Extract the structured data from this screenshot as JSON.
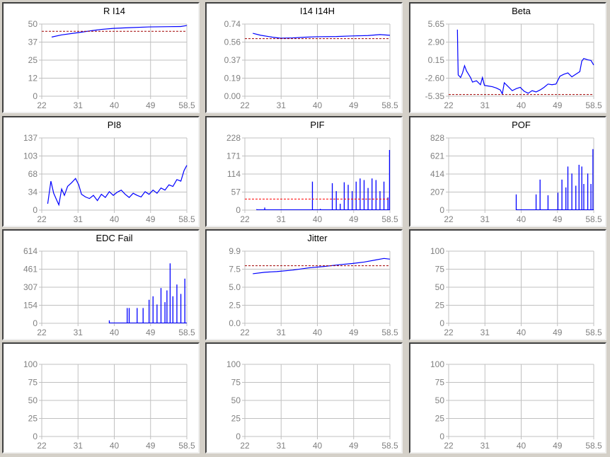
{
  "colors": {
    "line": "#0000ff",
    "threshold": "#a00000",
    "threshold_red": "#ff0000",
    "grid": "#c0c0c0",
    "tick": "#808080"
  },
  "chart_data": [
    {
      "type": "line",
      "title": "R I14",
      "xticks": [
        "22",
        "31",
        "40",
        "49",
        "58.5"
      ],
      "xlim": [
        22,
        58.5
      ],
      "yticks": [
        "0",
        "12",
        "25",
        "37",
        "50"
      ],
      "ylim": [
        0,
        50
      ],
      "threshold": 45,
      "series": [
        [
          24.5,
          41
        ],
        [
          27,
          42.5
        ],
        [
          31,
          44
        ],
        [
          33,
          44.8
        ],
        [
          35,
          45.6
        ],
        [
          37,
          46.3
        ],
        [
          40,
          47
        ],
        [
          44,
          47.5
        ],
        [
          49,
          48
        ],
        [
          54,
          48.2
        ],
        [
          57,
          48.3
        ],
        [
          58.5,
          49
        ]
      ]
    },
    {
      "type": "line",
      "title": "I14 I14H",
      "xticks": [
        "22",
        "31",
        "40",
        "49",
        "58.5"
      ],
      "xlim": [
        22,
        58.5
      ],
      "yticks": [
        "0.00",
        "0.19",
        "0.37",
        "0.56",
        "0.74"
      ],
      "ylim": [
        0,
        0.74
      ],
      "threshold": 0.59,
      "series": [
        [
          24,
          0.645
        ],
        [
          26,
          0.625
        ],
        [
          29,
          0.605
        ],
        [
          31,
          0.595
        ],
        [
          34,
          0.598
        ],
        [
          37,
          0.605
        ],
        [
          40,
          0.61
        ],
        [
          45,
          0.612
        ],
        [
          49,
          0.618
        ],
        [
          53,
          0.622
        ],
        [
          56,
          0.632
        ],
        [
          58.5,
          0.625
        ]
      ]
    },
    {
      "type": "line",
      "title": "Beta",
      "xticks": [
        "22",
        "31",
        "40",
        "49",
        "58.5"
      ],
      "xlim": [
        22,
        58.5
      ],
      "yticks": [
        "-5.35",
        "-2.60",
        "0.15",
        "2.90",
        "5.65"
      ],
      "ylim": [
        -5.35,
        5.65
      ],
      "threshold": -5.1,
      "series": [
        [
          24.2,
          4.8
        ],
        [
          24.3,
          0.9
        ],
        [
          24.4,
          -2.1
        ],
        [
          25,
          -2.5
        ],
        [
          25.5,
          -1.8
        ],
        [
          26,
          -0.7
        ],
        [
          26.5,
          -1.5
        ],
        [
          27,
          -2.0
        ],
        [
          27.5,
          -2.5
        ],
        [
          28,
          -3.2
        ],
        [
          29,
          -3.0
        ],
        [
          30,
          -3.6
        ],
        [
          30.5,
          -2.5
        ],
        [
          31,
          -3.7
        ],
        [
          32,
          -3.8
        ],
        [
          33,
          -3.9
        ],
        [
          34,
          -4.1
        ],
        [
          35,
          -4.4
        ],
        [
          35.5,
          -5.0
        ],
        [
          36,
          -3.3
        ],
        [
          37,
          -3.9
        ],
        [
          38,
          -4.5
        ],
        [
          39,
          -4.2
        ],
        [
          40,
          -4.0
        ],
        [
          41,
          -4.6
        ],
        [
          42,
          -4.9
        ],
        [
          43,
          -4.5
        ],
        [
          44,
          -4.7
        ],
        [
          45,
          -4.4
        ],
        [
          46,
          -4.0
        ],
        [
          47,
          -3.5
        ],
        [
          48,
          -3.6
        ],
        [
          49,
          -3.5
        ],
        [
          50,
          -2.3
        ],
        [
          51,
          -2.0
        ],
        [
          52,
          -1.8
        ],
        [
          53,
          -2.4
        ],
        [
          54,
          -2.0
        ],
        [
          55,
          -1.6
        ],
        [
          55.5,
          0.0
        ],
        [
          56,
          0.4
        ],
        [
          57,
          0.2
        ],
        [
          57.8,
          0.1
        ],
        [
          58.5,
          -0.6
        ]
      ]
    },
    {
      "type": "line",
      "title": "PI8",
      "xticks": [
        "22",
        "31",
        "40",
        "49",
        "58.5"
      ],
      "xlim": [
        22,
        58.5
      ],
      "yticks": [
        "0",
        "34",
        "68",
        "103",
        "137"
      ],
      "ylim": [
        0,
        137
      ],
      "series": [
        [
          23.5,
          12
        ],
        [
          24.3,
          55
        ],
        [
          25,
          32
        ],
        [
          25.7,
          20
        ],
        [
          26.3,
          10
        ],
        [
          27,
          40
        ],
        [
          27.7,
          28
        ],
        [
          28.5,
          45
        ],
        [
          29.5,
          52
        ],
        [
          30.5,
          60
        ],
        [
          31.3,
          48
        ],
        [
          32,
          30
        ],
        [
          33,
          25
        ],
        [
          34,
          22
        ],
        [
          35,
          28
        ],
        [
          36,
          18
        ],
        [
          37,
          30
        ],
        [
          38,
          24
        ],
        [
          39,
          35
        ],
        [
          40,
          28
        ],
        [
          41,
          34
        ],
        [
          42,
          38
        ],
        [
          43,
          30
        ],
        [
          44,
          24
        ],
        [
          45,
          32
        ],
        [
          46,
          28
        ],
        [
          47,
          25
        ],
        [
          48,
          35
        ],
        [
          49,
          30
        ],
        [
          50,
          38
        ],
        [
          51,
          32
        ],
        [
          52,
          42
        ],
        [
          53,
          38
        ],
        [
          54,
          48
        ],
        [
          55,
          45
        ],
        [
          56,
          58
        ],
        [
          57,
          55
        ],
        [
          57.8,
          75
        ],
        [
          58.5,
          85
        ]
      ]
    },
    {
      "type": "spike",
      "title": "PIF",
      "xticks": [
        "22",
        "31",
        "40",
        "49",
        "58.5"
      ],
      "xlim": [
        22,
        58.5
      ],
      "yticks": [
        "0",
        "57",
        "114",
        "171",
        "228"
      ],
      "ylim": [
        0,
        228
      ],
      "threshold": 35,
      "threshold_color": "red",
      "series": [
        [
          25,
          3
        ],
        [
          27,
          8
        ],
        [
          29,
          2
        ],
        [
          33,
          2
        ],
        [
          39,
          90
        ],
        [
          41,
          4
        ],
        [
          44,
          85
        ],
        [
          45,
          60
        ],
        [
          46,
          20
        ],
        [
          47,
          88
        ],
        [
          48,
          80
        ],
        [
          49,
          60
        ],
        [
          50,
          90
        ],
        [
          51,
          100
        ],
        [
          52,
          95
        ],
        [
          53,
          70
        ],
        [
          54,
          100
        ],
        [
          55,
          95
        ],
        [
          56,
          60
        ],
        [
          57,
          90
        ],
        [
          58,
          40
        ],
        [
          58.4,
          190
        ]
      ]
    },
    {
      "type": "spike",
      "title": "POF",
      "xticks": [
        "22",
        "31",
        "40",
        "49",
        "58.5"
      ],
      "xlim": [
        22,
        58.5
      ],
      "yticks": [
        "0",
        "207",
        "414",
        "621",
        "828"
      ],
      "ylim": [
        0,
        828
      ],
      "series": [
        [
          39,
          180
        ],
        [
          44,
          180
        ],
        [
          45,
          350
        ],
        [
          47,
          170
        ],
        [
          49.5,
          200
        ],
        [
          50.5,
          350
        ],
        [
          51.5,
          260
        ],
        [
          52,
          500
        ],
        [
          53,
          420
        ],
        [
          54,
          280
        ],
        [
          54.8,
          520
        ],
        [
          55.5,
          500
        ],
        [
          56,
          300
        ],
        [
          57,
          420
        ],
        [
          57.8,
          300
        ],
        [
          58.3,
          700
        ]
      ]
    },
    {
      "type": "spike",
      "title": "EDC Fail",
      "xticks": [
        "22",
        "31",
        "40",
        "49",
        "58.5"
      ],
      "xlim": [
        22,
        58.5
      ],
      "yticks": [
        "0",
        "154",
        "307",
        "461",
        "614"
      ],
      "ylim": [
        0,
        614
      ],
      "series": [
        [
          39,
          25
        ],
        [
          43.5,
          130
        ],
        [
          44,
          130
        ],
        [
          46,
          130
        ],
        [
          47.5,
          130
        ],
        [
          49,
          200
        ],
        [
          50,
          230
        ],
        [
          51,
          160
        ],
        [
          52,
          300
        ],
        [
          53,
          180
        ],
        [
          53.5,
          280
        ],
        [
          54.3,
          510
        ],
        [
          55,
          230
        ],
        [
          56,
          330
        ],
        [
          57,
          250
        ],
        [
          58,
          380
        ]
      ]
    },
    {
      "type": "line",
      "title": "Jitter",
      "xticks": [
        "22",
        "31",
        "40",
        "49",
        "58.5"
      ],
      "xlim": [
        22,
        58.5
      ],
      "yticks": [
        "0.0",
        "2.5",
        "5.0",
        "7.5",
        "9.9"
      ],
      "ylim": [
        0,
        9.9
      ],
      "threshold": 7.9,
      "series": [
        [
          24,
          6.8
        ],
        [
          27,
          7.0
        ],
        [
          30,
          7.1
        ],
        [
          34,
          7.3
        ],
        [
          38,
          7.6
        ],
        [
          42,
          7.8
        ],
        [
          46,
          8.05
        ],
        [
          49,
          8.2
        ],
        [
          52,
          8.4
        ],
        [
          55,
          8.7
        ],
        [
          57,
          8.9
        ],
        [
          58.5,
          8.8
        ]
      ]
    },
    {
      "type": "line",
      "title": "",
      "xticks": [
        "22",
        "31",
        "40",
        "49",
        "58.5"
      ],
      "xlim": [
        22,
        58.5
      ],
      "yticks": [
        "0",
        "25",
        "50",
        "75",
        "100"
      ],
      "ylim": [
        0,
        100
      ],
      "series": []
    },
    {
      "type": "line",
      "title": "",
      "xticks": [
        "22",
        "31",
        "40",
        "49",
        "58.5"
      ],
      "xlim": [
        22,
        58.5
      ],
      "yticks": [
        "0",
        "25",
        "50",
        "75",
        "100"
      ],
      "ylim": [
        0,
        100
      ],
      "series": []
    },
    {
      "type": "line",
      "title": "",
      "xticks": [
        "22",
        "31",
        "40",
        "49",
        "58.5"
      ],
      "xlim": [
        22,
        58.5
      ],
      "yticks": [
        "0",
        "25",
        "50",
        "75",
        "100"
      ],
      "ylim": [
        0,
        100
      ],
      "series": []
    },
    {
      "type": "line",
      "title": "",
      "xticks": [
        "22",
        "31",
        "40",
        "49",
        "58.5"
      ],
      "xlim": [
        22,
        58.5
      ],
      "yticks": [
        "0",
        "25",
        "50",
        "75",
        "100"
      ],
      "ylim": [
        0,
        100
      ],
      "series": []
    }
  ]
}
